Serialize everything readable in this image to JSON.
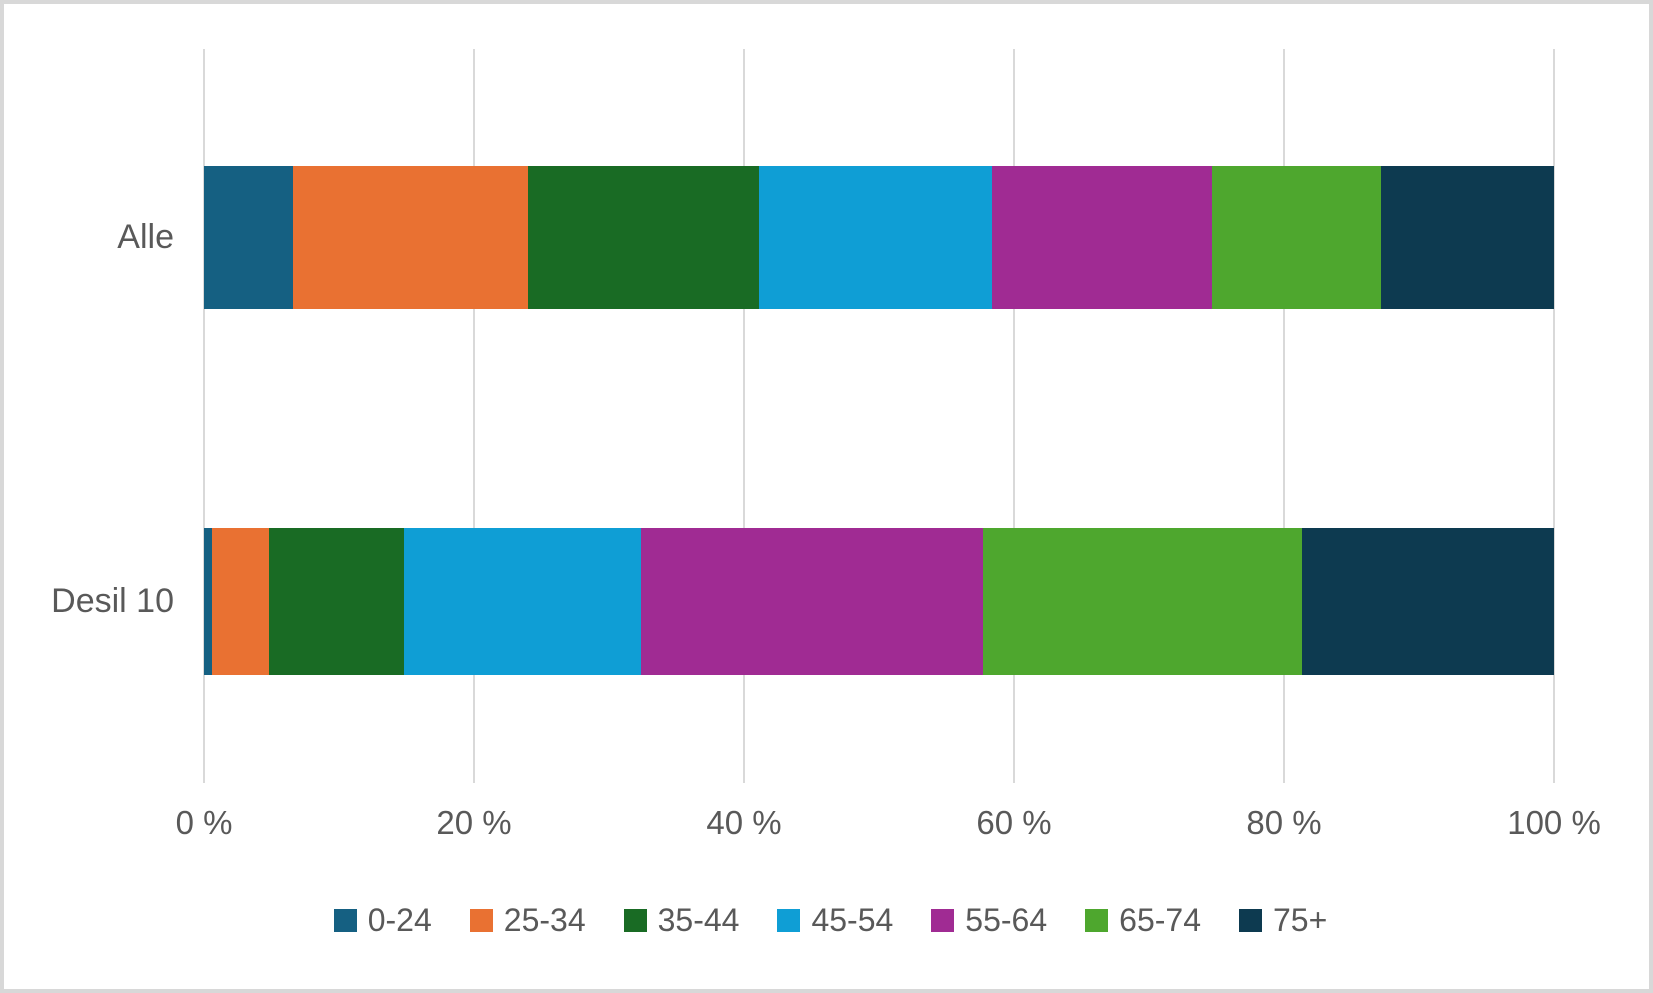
{
  "chart_data": {
    "type": "bar",
    "stacked": true,
    "orientation": "horizontal",
    "title": "",
    "categories": [
      "Alle",
      "Desil 10"
    ],
    "series": [
      {
        "name": "0-24",
        "color": "#156082",
        "values": [
          6.6,
          0.6
        ]
      },
      {
        "name": "25-34",
        "color": "#E97132",
        "values": [
          17.4,
          4.2
        ]
      },
      {
        "name": "35-44",
        "color": "#196B24",
        "values": [
          17.1,
          10.0
        ]
      },
      {
        "name": "45-54",
        "color": "#0F9ED5",
        "values": [
          17.3,
          17.6
        ]
      },
      {
        "name": "55-64",
        "color": "#A02B93",
        "values": [
          16.3,
          25.3
        ]
      },
      {
        "name": "65-74",
        "color": "#4EA72E",
        "values": [
          12.5,
          23.6
        ]
      },
      {
        "name": "75+",
        "color": "#0D3A50",
        "values": [
          12.8,
          18.7
        ]
      }
    ],
    "x_axis": {
      "range": [
        0,
        100
      ],
      "ticks": [
        0,
        20,
        40,
        60,
        80,
        100
      ],
      "tick_labels": [
        "0 %",
        "20 %",
        "40 %",
        "60 %",
        "80 %",
        "100 %"
      ]
    },
    "grid": true,
    "legend_position": "bottom"
  },
  "colors": {
    "background": "#FFFFFF",
    "frame_border": "#D8D8D8",
    "gridline": "#D9D9D9",
    "text": "#595959"
  }
}
